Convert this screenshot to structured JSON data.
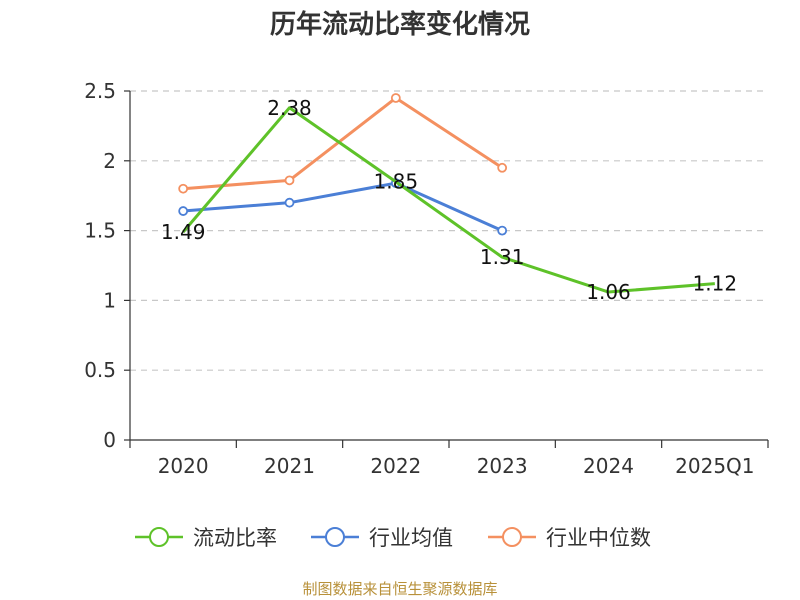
{
  "title": "历年流动比率变化情况",
  "source": "制图数据来自恒生聚源数据库",
  "colors": {
    "series_0": "#5ec229",
    "series_1": "#4b7fd6",
    "series_2": "#f49060",
    "grid": "#c8c8c8",
    "axis": "#333333"
  },
  "chart_data": {
    "type": "line",
    "title": "历年流动比率变化情况",
    "categories": [
      "2020",
      "2021",
      "2022",
      "2023",
      "2024",
      "2025Q1"
    ],
    "ylim": [
      0,
      2.5
    ],
    "yticks": [
      "0",
      "0.5",
      "1",
      "1.5",
      "2",
      "2.5"
    ],
    "grid": true,
    "legend_position": "bottom",
    "series": [
      {
        "name": "流动比率",
        "values": [
          1.49,
          2.38,
          1.85,
          1.31,
          1.06,
          1.12
        ],
        "labels": [
          "1.49",
          "2.38",
          "1.85",
          "1.31",
          "1.06",
          "1.12"
        ]
      },
      {
        "name": "行业均值",
        "values": [
          1.64,
          1.7,
          1.84,
          1.5,
          null,
          null
        ]
      },
      {
        "name": "行业中位数",
        "values": [
          1.8,
          1.86,
          2.45,
          1.95,
          null,
          null
        ]
      }
    ]
  }
}
